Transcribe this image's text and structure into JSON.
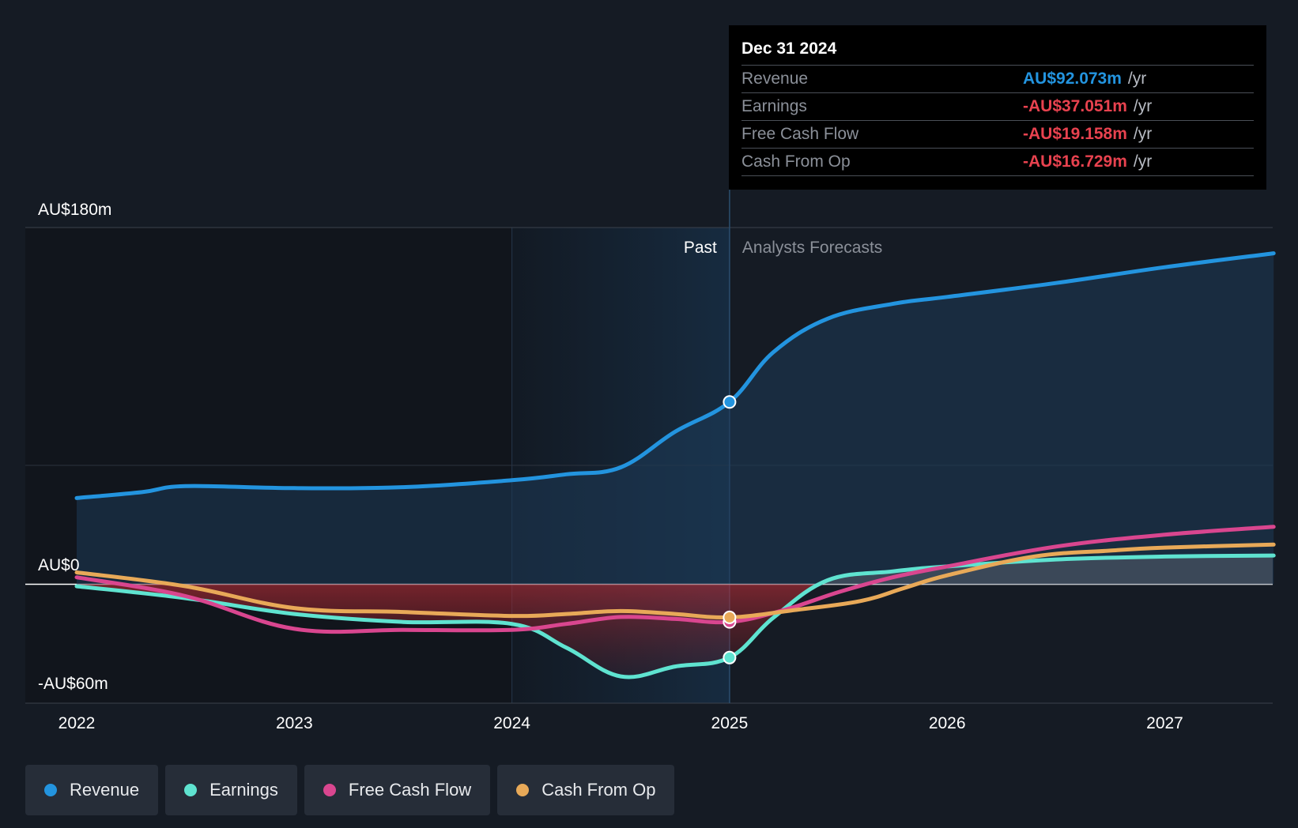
{
  "colors": {
    "revenue": "#2394df",
    "earnings": "#5fe3d0",
    "fcf": "#d9468f",
    "cfo": "#e8a958",
    "negative": "#e8424f"
  },
  "tooltip": {
    "date": "Dec 31 2024",
    "unit": "/yr",
    "rows": [
      {
        "label": "Revenue",
        "value": "AU$92.073m"
      },
      {
        "label": "Earnings",
        "value": "-AU$37.051m"
      },
      {
        "label": "Free Cash Flow",
        "value": "-AU$19.158m"
      },
      {
        "label": "Cash From Op",
        "value": "-AU$16.729m"
      }
    ]
  },
  "chart_data": {
    "type": "line",
    "y_tick_labels": {
      "top": "AU$180m",
      "zero": "AU$0",
      "bottom": "-AU$60m"
    },
    "ylim": [
      -60,
      180
    ],
    "xlim": [
      2021.76,
      2027.5
    ],
    "x_tick_labels": [
      "2022",
      "2023",
      "2024",
      "2025",
      "2026",
      "2027"
    ],
    "x_ticks": [
      2022,
      2023,
      2024,
      2025,
      2026,
      2027
    ],
    "past_label": "Past",
    "forecast_label": "Analysts Forecasts",
    "past_shade_start": 2024.0,
    "divider": 2025.0,
    "legend_position": "bottom-left",
    "series": [
      {
        "name": "Revenue",
        "key": "revenue",
        "points": [
          [
            2022.0,
            43.5
          ],
          [
            2022.3,
            46.5
          ],
          [
            2022.5,
            49.5
          ],
          [
            2023.0,
            48.5
          ],
          [
            2023.5,
            49
          ],
          [
            2024.0,
            52.5
          ],
          [
            2024.25,
            55.5
          ],
          [
            2024.5,
            59
          ],
          [
            2024.75,
            77
          ],
          [
            2025.0,
            92
          ],
          [
            2025.2,
            117
          ],
          [
            2025.45,
            134
          ],
          [
            2025.75,
            141.5
          ],
          [
            2026.0,
            145
          ],
          [
            2026.5,
            152
          ],
          [
            2027.0,
            160
          ],
          [
            2027.5,
            167
          ]
        ]
      },
      {
        "name": "Earnings",
        "key": "earnings",
        "points": [
          [
            2022.0,
            -1
          ],
          [
            2022.5,
            -7
          ],
          [
            2023.0,
            -15
          ],
          [
            2023.5,
            -19
          ],
          [
            2024.0,
            -20
          ],
          [
            2024.25,
            -32
          ],
          [
            2024.5,
            -46.5
          ],
          [
            2024.75,
            -41.5
          ],
          [
            2025.0,
            -37
          ],
          [
            2025.2,
            -17
          ],
          [
            2025.45,
            2
          ],
          [
            2025.75,
            6.5
          ],
          [
            2026.0,
            9
          ],
          [
            2026.5,
            12.5
          ],
          [
            2027.0,
            14
          ],
          [
            2027.5,
            14.5
          ]
        ]
      },
      {
        "name": "Free Cash Flow",
        "key": "fcf",
        "points": [
          [
            2022.0,
            3.5
          ],
          [
            2022.5,
            -6
          ],
          [
            2023.0,
            -22.5
          ],
          [
            2023.5,
            -23
          ],
          [
            2024.0,
            -23
          ],
          [
            2024.25,
            -20
          ],
          [
            2024.5,
            -16.5
          ],
          [
            2024.75,
            -17.5
          ],
          [
            2025.0,
            -19
          ],
          [
            2025.25,
            -13
          ],
          [
            2025.5,
            -4
          ],
          [
            2025.75,
            3.5
          ],
          [
            2026.0,
            9
          ],
          [
            2026.5,
            19
          ],
          [
            2027.0,
            25
          ],
          [
            2027.5,
            29
          ]
        ]
      },
      {
        "name": "Cash From Op",
        "key": "cfo",
        "points": [
          [
            2022.0,
            6
          ],
          [
            2022.5,
            -1
          ],
          [
            2023.0,
            -12
          ],
          [
            2023.5,
            -14
          ],
          [
            2024.0,
            -16
          ],
          [
            2024.25,
            -15
          ],
          [
            2024.5,
            -13.5
          ],
          [
            2024.75,
            -15
          ],
          [
            2025.0,
            -16.7
          ],
          [
            2025.3,
            -13
          ],
          [
            2025.6,
            -8.5
          ],
          [
            2025.8,
            -2
          ],
          [
            2026.0,
            4.5
          ],
          [
            2026.4,
            14
          ],
          [
            2026.75,
            17
          ],
          [
            2027.0,
            18.5
          ],
          [
            2027.5,
            20
          ]
        ]
      }
    ]
  },
  "legend": [
    {
      "label": "Revenue",
      "key": "revenue"
    },
    {
      "label": "Earnings",
      "key": "earnings"
    },
    {
      "label": "Free Cash Flow",
      "key": "fcf"
    },
    {
      "label": "Cash From Op",
      "key": "cfo"
    }
  ]
}
